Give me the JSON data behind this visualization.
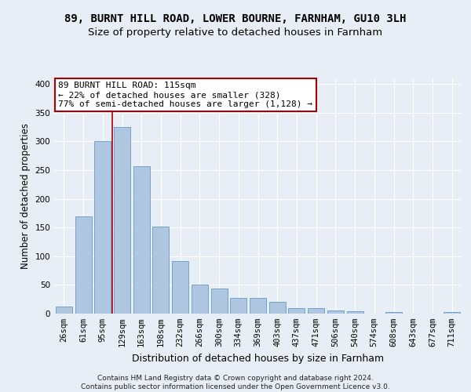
{
  "title1": "89, BURNT HILL ROAD, LOWER BOURNE, FARNHAM, GU10 3LH",
  "title2": "Size of property relative to detached houses in Farnham",
  "xlabel": "Distribution of detached houses by size in Farnham",
  "ylabel": "Number of detached properties",
  "categories": [
    "26sqm",
    "61sqm",
    "95sqm",
    "129sqm",
    "163sqm",
    "198sqm",
    "232sqm",
    "266sqm",
    "300sqm",
    "334sqm",
    "369sqm",
    "403sqm",
    "437sqm",
    "471sqm",
    "506sqm",
    "540sqm",
    "574sqm",
    "608sqm",
    "643sqm",
    "677sqm",
    "711sqm"
  ],
  "values": [
    12,
    170,
    300,
    325,
    257,
    152,
    91,
    50,
    44,
    28,
    28,
    20,
    10,
    10,
    5,
    4,
    0,
    3,
    0,
    0,
    3
  ],
  "bar_color": "#aec6df",
  "bar_edge_color": "#6699cc",
  "annotation_line1": "89 BURNT HILL ROAD: 115sqm",
  "annotation_line2": "← 22% of detached houses are smaller (328)",
  "annotation_line3": "77% of semi-detached houses are larger (1,128) →",
  "annotation_box_facecolor": "#ffffff",
  "annotation_box_edgecolor": "#aa0000",
  "vline_x": 2.5,
  "vline_color": "#aa0000",
  "background_color": "#e8eef5",
  "plot_bg_color": "#e8eef5",
  "grid_color": "#ffffff",
  "ylim": [
    0,
    410
  ],
  "yticks": [
    0,
    50,
    100,
    150,
    200,
    250,
    300,
    350,
    400
  ],
  "footer": "Contains HM Land Registry data © Crown copyright and database right 2024.\nContains public sector information licensed under the Open Government Licence v3.0.",
  "title1_fontsize": 10,
  "title2_fontsize": 9.5,
  "xlabel_fontsize": 9,
  "ylabel_fontsize": 8.5,
  "tick_fontsize": 7.5,
  "annotation_fontsize": 8,
  "footer_fontsize": 6.5
}
